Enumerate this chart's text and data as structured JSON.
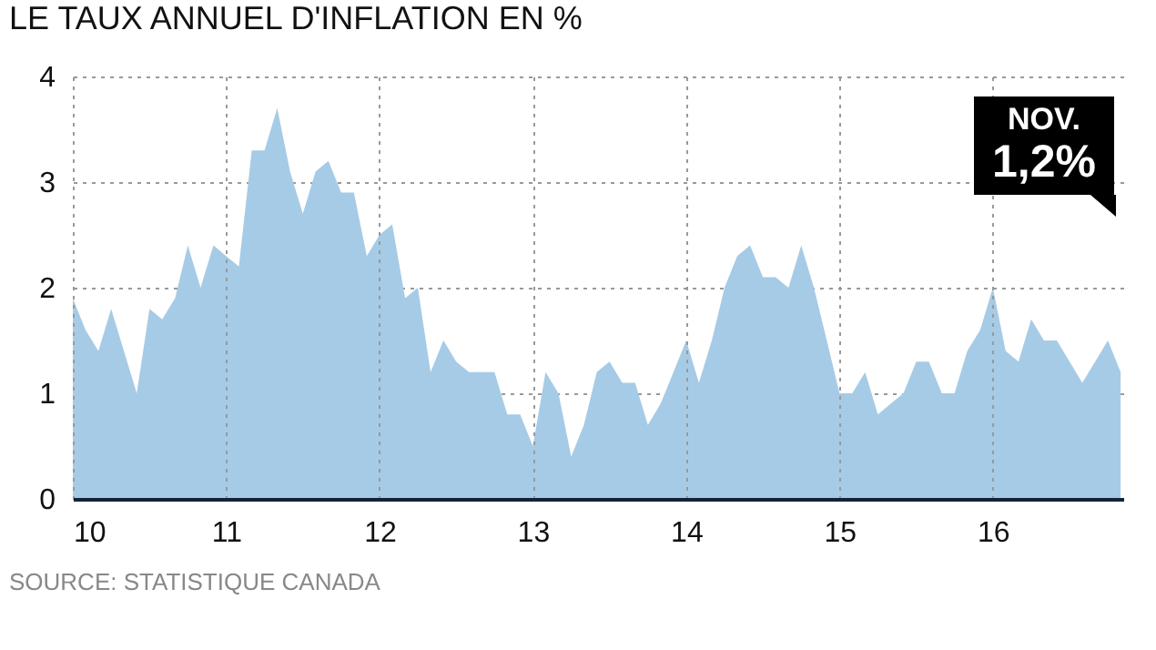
{
  "chart_data": {
    "type": "area",
    "title": "LE TAUX ANNUEL D'INFLATION EN %",
    "x": [
      10,
      10.083,
      10.167,
      10.25,
      10.333,
      10.417,
      10.5,
      10.583,
      10.667,
      10.75,
      10.833,
      10.917,
      11,
      11.083,
      11.167,
      11.25,
      11.333,
      11.417,
      11.5,
      11.583,
      11.667,
      11.75,
      11.833,
      11.917,
      12,
      12.083,
      12.167,
      12.25,
      12.333,
      12.417,
      12.5,
      12.583,
      12.667,
      12.75,
      12.833,
      12.917,
      13,
      13.083,
      13.167,
      13.25,
      13.333,
      13.417,
      13.5,
      13.583,
      13.667,
      13.75,
      13.833,
      13.917,
      14,
      14.083,
      14.167,
      14.25,
      14.333,
      14.417,
      14.5,
      14.583,
      14.667,
      14.75,
      14.833,
      14.917,
      15,
      15.083,
      15.167,
      15.25,
      15.333,
      15.417,
      15.5,
      15.583,
      15.667,
      15.75,
      15.833,
      15.917,
      16,
      16.083,
      16.167,
      16.25,
      16.333,
      16.417,
      16.5,
      16.583,
      16.667,
      16.75,
      16.833
    ],
    "series": [
      {
        "color": "#a6cbe6",
        "values": [
          1.9,
          1.6,
          1.4,
          1.8,
          1.4,
          1.0,
          1.8,
          1.7,
          1.9,
          2.4,
          2.0,
          2.4,
          2.3,
          2.2,
          3.3,
          3.3,
          3.7,
          3.1,
          2.7,
          3.1,
          3.2,
          2.9,
          2.9,
          2.3,
          2.5,
          2.6,
          1.9,
          2.0,
          1.2,
          1.5,
          1.3,
          1.2,
          1.2,
          1.2,
          0.8,
          0.8,
          0.5,
          1.2,
          1.0,
          0.4,
          0.7,
          1.2,
          1.3,
          1.1,
          1.1,
          0.7,
          0.9,
          1.2,
          1.5,
          1.1,
          1.5,
          2.0,
          2.3,
          2.4,
          2.1,
          2.1,
          2.0,
          2.4,
          2.0,
          1.5,
          1.0,
          1.0,
          1.2,
          0.8,
          0.9,
          1.0,
          1.3,
          1.3,
          1.0,
          1.0,
          1.4,
          1.6,
          2.0,
          1.4,
          1.3,
          1.7,
          1.5,
          1.5,
          1.3,
          1.1,
          1.3,
          1.5,
          1.2
        ]
      }
    ],
    "xlim": [
      10,
      16.85
    ],
    "xticks": [
      10,
      11,
      12,
      13,
      14,
      15,
      16
    ],
    "ylim": [
      0,
      4
    ],
    "yticks": [
      0,
      1,
      2,
      3,
      4
    ],
    "grid": true,
    "annotations": [
      "NOV.\n1,2%",
      "SOURCE: STATISTIQUE CANADA"
    ]
  }
}
